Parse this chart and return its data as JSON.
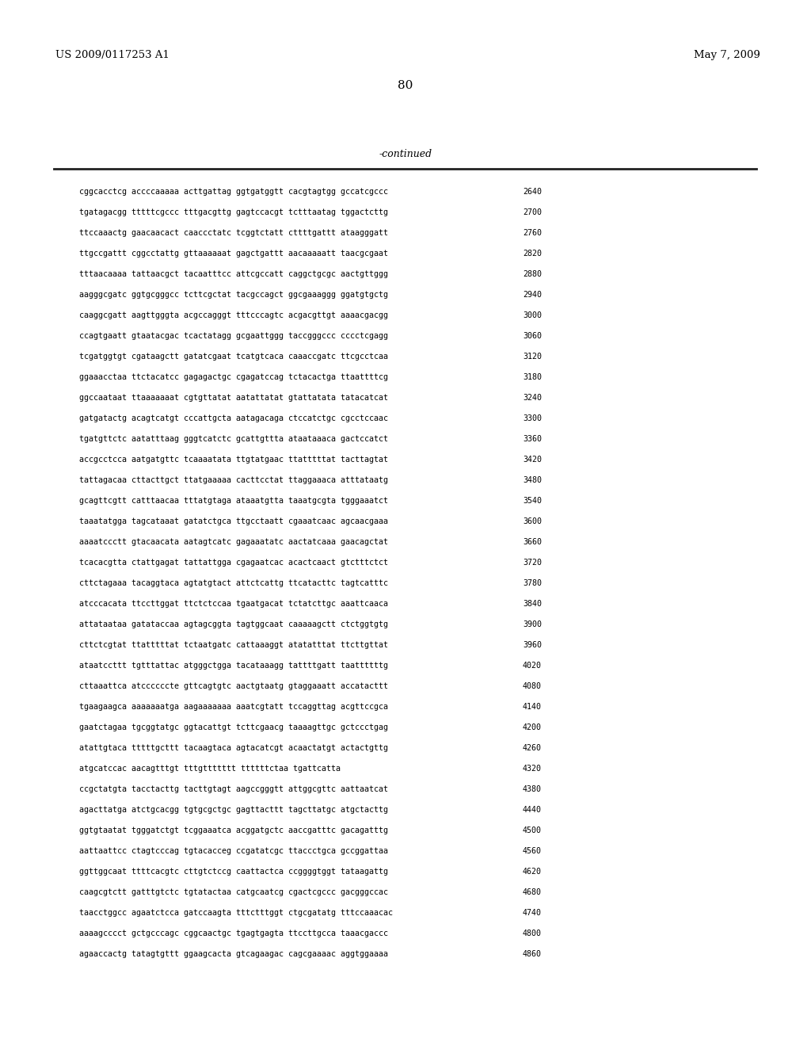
{
  "header_left": "US 2009/0117253 A1",
  "header_right": "May 7, 2009",
  "page_number": "80",
  "continued_label": "-continued",
  "background_color": "#ffffff",
  "text_color": "#000000",
  "sequence_lines": [
    [
      "cggcacctcg accccaaaaa acttgattag ggtgatggtt cacgtagtgg gccatcgccc",
      "2640"
    ],
    [
      "tgatagacgg tttttcgccc tttgacgttg gagtccacgt tctttaatag tggactcttg",
      "2700"
    ],
    [
      "ttccaaactg gaacaacact caaccctatc tcggtctatt cttttgattt ataagggatt",
      "2760"
    ],
    [
      "ttgccgattt cggcctattg gttaaaaaat gagctgattt aacaaaaatt taacgcgaat",
      "2820"
    ],
    [
      "tttaacaaaa tattaacgct tacaatttcc attcgccatt caggctgcgc aactgttggg",
      "2880"
    ],
    [
      "aagggcgatc ggtgcgggcc tcttcgctat tacgccagct ggcgaaaggg ggatgtgctg",
      "2940"
    ],
    [
      "caaggcgatt aagttgggta acgccagggt tttcccagtc acgacgttgt aaaacgacgg",
      "3000"
    ],
    [
      "ccagtgaatt gtaatacgac tcactatagg gcgaattggg taccgggccc cccctcgagg",
      "3060"
    ],
    [
      "tcgatggtgt cgataagctt gatatcgaat tcatgtcaca caaaccgatc ttcgcctcaa",
      "3120"
    ],
    [
      "ggaaacctaa ttctacatcc gagagactgc cgagatccag tctacactga ttaattttcg",
      "3180"
    ],
    [
      "ggccaataat ttaaaaaaat cgtgttatat aatattatat gtattatata tatacatcat",
      "3240"
    ],
    [
      "gatgatactg acagtcatgt cccattgcta aatagacaga ctccatctgc cgcctccaac",
      "3300"
    ],
    [
      "tgatgttctc aatatttaag gggtcatctc gcattgttta ataataaaca gactccatct",
      "3360"
    ],
    [
      "accgcctcca aatgatgttc tcaaaatata ttgtatgaac ttatttttat tacttagtat",
      "3420"
    ],
    [
      "tattagacaa cttacttgct ttatgaaaaa cacttcctat ttaggaaaca atttataatg",
      "3480"
    ],
    [
      "gcagttcgtt catttaacaa tttatgtaga ataaatgtta taaatgcgta tgggaaatct",
      "3540"
    ],
    [
      "taaatatgga tagcataaat gatatctgca ttgcctaatt cgaaatcaac agcaacgaaa",
      "3600"
    ],
    [
      "aaaatccctt gtacaacata aatagtcatc gagaaatatc aactatcaaa gaacagctat",
      "3660"
    ],
    [
      "tcacacgtta ctattgagat tattattgga cgagaatcac acactcaact gtctttctct",
      "3720"
    ],
    [
      "cttctagaaa tacaggtaca agtatgtact attctcattg ttcatacttc tagtcatttc",
      "3780"
    ],
    [
      "atcccacata ttccttggat ttctctccaa tgaatgacat tctatcttgc aaattcaaca",
      "3840"
    ],
    [
      "attataataa gatataccaa agtagcggta tagtggcaat caaaaagctt ctctggtgtg",
      "3900"
    ],
    [
      "cttctcgtat ttatttttat tctaatgatc cattaaaggt atatatttat ttcttgttat",
      "3960"
    ],
    [
      "ataatccttt tgtttattac atgggctgga tacataaagg tattttgatt taattttttg",
      "4020"
    ],
    [
      "cttaaattca atccccccte gttcagtgtc aactgtaatg gtaggaaatt accatacttt",
      "4080"
    ],
    [
      "tgaagaagca aaaaaaatga aagaaaaaaa aaatcgtatt tccaggttag acgttccgca",
      "4140"
    ],
    [
      "gaatctagaa tgcggtatgc ggtacattgt tcttcgaacg taaaagttgc gctccctgag",
      "4200"
    ],
    [
      "atattgtaca tttttgcttt tacaagtaca agtacatcgt acaactatgt actactgttg",
      "4260"
    ],
    [
      "atgcatccac aacagtttgt tttgttttttt ttttttctaa tgattcatta",
      "4320"
    ],
    [
      "ccgctatgta tacctacttg tacttgtagt aagccgggtt attggcgttc aattaatcat",
      "4380"
    ],
    [
      "agacttatga atctgcacgg tgtgcgctgc gagttacttt tagcttatgc atgctacttg",
      "4440"
    ],
    [
      "ggtgtaatat tgggatctgt tcggaaatca acggatgctc aaccgatttc gacagatttg",
      "4500"
    ],
    [
      "aattaattcc ctagtcccag tgtacacceg ccgatatcgc ttaccctgca gccggattaa",
      "4560"
    ],
    [
      "ggttggcaat ttttcacgtc cttgtctccg caattactca ccggggtggt tataagattg",
      "4620"
    ],
    [
      "caagcgtctt gatttgtctc tgtatactaa catgcaatcg cgactcgccc gacgggccac",
      "4680"
    ],
    [
      "taacctggcc agaatctcca gatccaagta tttctttggt ctgcgatatg tttccaaacac",
      "4740"
    ],
    [
      "aaaagcccct gctgcccagc cggcaactgc tgagtgagta ttccttgcca taaacgaccc",
      "4800"
    ],
    [
      "agaaccactg tatagtgttt ggaagcacta gtcagaagac cagcgaaaac aggtggaaaa",
      "4860"
    ]
  ]
}
